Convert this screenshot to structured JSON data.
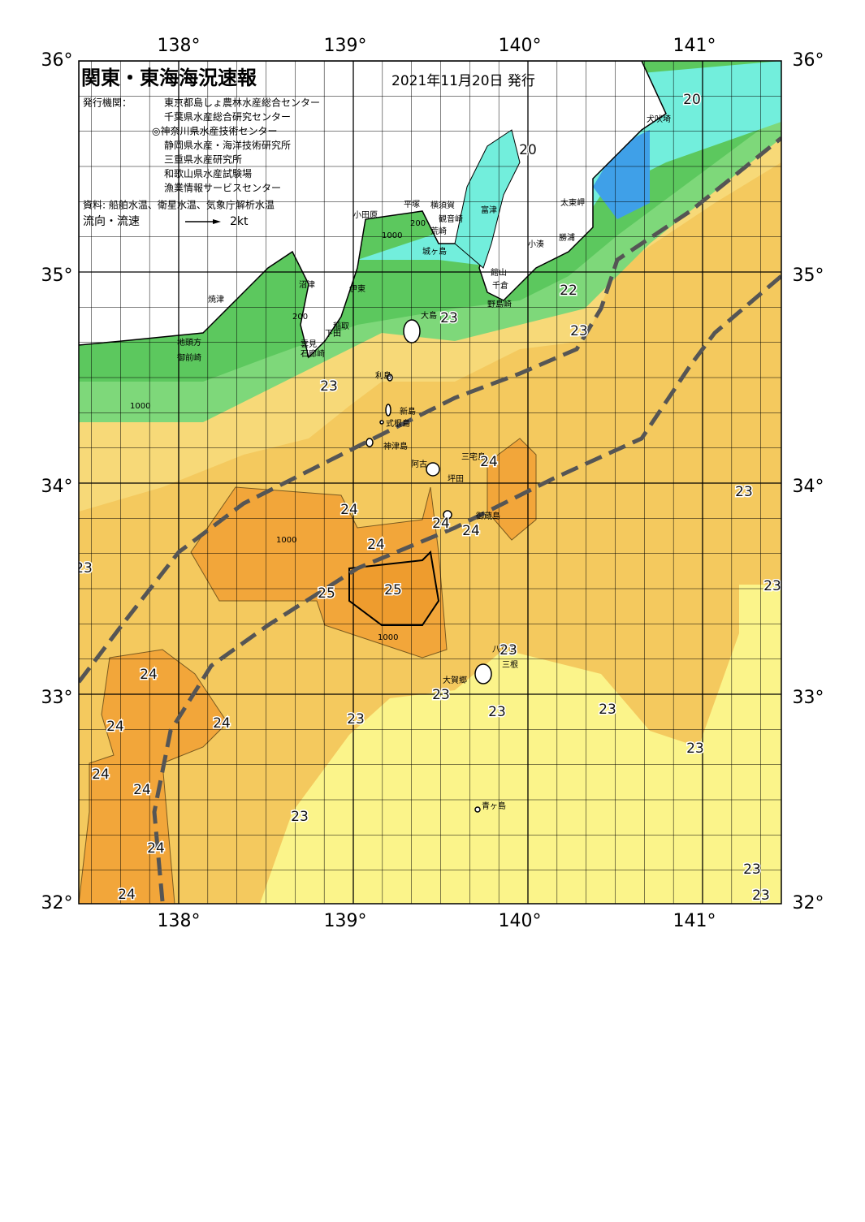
{
  "header": {
    "title": "関東・東海海況速報",
    "date": "2021年11月20日 発行",
    "issuers_label": "発行機関：",
    "issuers": [
      "東京都島しょ農林水産総合センター",
      "千葉県水産総合研究センター",
      "◎神奈川県水産技術センター",
      "静岡県水産・海洋技術研究所",
      "三重県水産研究所",
      "和歌山県水産試験場",
      "漁業情報サービスセンター"
    ],
    "source": "資料: 船舶水温、衛星水温、気象庁解析水温",
    "legend_label": "流向・流速",
    "legend_scale": "2kt"
  },
  "lon_labels": [
    "138°",
    "139°",
    "140°",
    "141°"
  ],
  "lat_labels": [
    "36°",
    "35°",
    "34°",
    "33°",
    "32°"
  ],
  "places": [
    "犬吠埼",
    "太東岬",
    "勝浦",
    "小湊",
    "富津",
    "横須賀",
    "観音崎",
    "荒崎",
    "平塚",
    "小田原",
    "城ヶ島",
    "館山",
    "千倉",
    "野島崎",
    "沼津",
    "焼津",
    "伊東",
    "稲取",
    "下田",
    "雲見",
    "石廊崎",
    "地頭方",
    "御前崎",
    "大島",
    "利島",
    "新島",
    "式根島",
    "神津島",
    "三宅島",
    "阿古",
    "坪田",
    "御蔵島",
    "八丈島",
    "三根",
    "大賀郷",
    "青ヶ島"
  ],
  "isotherm_labels": [
    20,
    20,
    22,
    23,
    23,
    23,
    24,
    23,
    24,
    24,
    24,
    24,
    23,
    23,
    25,
    25,
    23,
    24,
    23,
    23,
    23,
    23,
    24,
    24,
    23,
    24,
    24,
    23,
    24,
    23,
    24,
    23
  ],
  "isobath_labels": [
    "200",
    "1000",
    "200",
    "1000",
    "1000",
    "1000"
  ]
}
